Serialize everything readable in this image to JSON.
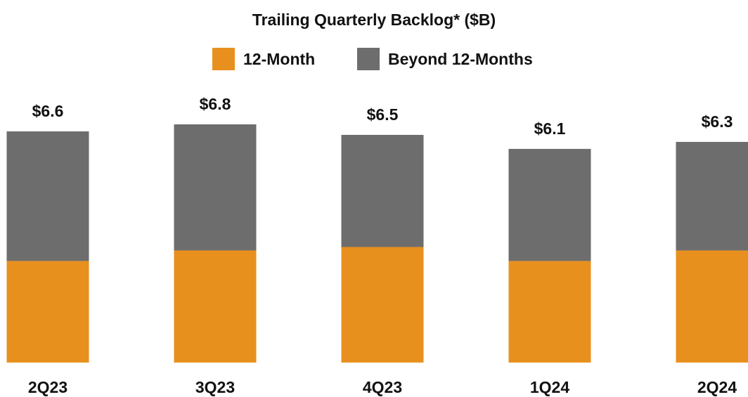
{
  "chart_data": {
    "type": "stacked_bar",
    "title": "Trailing Quarterly Backlog* ($B)",
    "categories": [
      "2Q23",
      "3Q23",
      "4Q23",
      "1Q24",
      "2Q24"
    ],
    "series": [
      {
        "name": "12-Month",
        "color": "#e8901e",
        "values": [
          2.9,
          3.2,
          3.3,
          2.9,
          3.2
        ]
      },
      {
        "name": "Beyond 12-Months",
        "color": "#6d6d6d",
        "values": [
          3.7,
          3.6,
          3.2,
          3.2,
          3.1
        ]
      }
    ],
    "totals": [
      6.6,
      6.8,
      6.5,
      6.1,
      6.3
    ],
    "total_labels": [
      "$6.6",
      "$6.8",
      "$6.5",
      "$6.1",
      "$6.3"
    ]
  }
}
